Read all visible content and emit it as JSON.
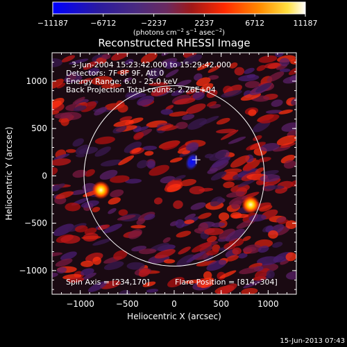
{
  "colorbar": {
    "ticks": [
      "−11187",
      "−6712",
      "−2237",
      "2237",
      "6712",
      "11187"
    ],
    "unit_main": "(photons cm",
    "unit_sup1": "−2",
    "unit_mid": " s",
    "unit_sup2": "−1",
    "unit_mid2": " asec",
    "unit_sup3": "−2",
    "unit_end": ")",
    "colors": [
      "#0000ff",
      "#3a1a8c",
      "#6b2a73",
      "#a02020",
      "#ff2a00",
      "#ff9a00",
      "#ffff60",
      "#ffffff"
    ]
  },
  "annotations": {
    "time_range": "3-Jun-2004 15:23:42.000 to 15:29:42.000",
    "detectors": "Detectors: 7F 8F 9F, Att 0",
    "energy": "Energy Range: 6.0 - 25.0 keV",
    "method": "Back Projection    Total counts: 2.26E+04",
    "spin_axis": "Spin Axis = [234,170]",
    "flare_position": "Flare Position = [814,-304]"
  },
  "footer": {
    "timestamp": "15-Jun-2013 07:43"
  },
  "chart_data": {
    "type": "heatmap",
    "title": "Reconstructed RHESSI Image",
    "xlabel": "Heliocentric X (arcsec)",
    "ylabel": "Heliocentric Y (arcsec)",
    "xlim": [
      -1300,
      1300
    ],
    "ylim": [
      -1250,
      1300
    ],
    "xticks": [
      -1000,
      -500,
      0,
      500,
      1000
    ],
    "yticks": [
      1000,
      500,
      0,
      -500,
      -1000
    ],
    "xtick_labels": [
      "−1000",
      "−500",
      "0",
      "500",
      "1000"
    ],
    "ytick_labels": [
      "1000",
      "500",
      "0",
      "−500",
      "−1000"
    ],
    "value_range": [
      -11187,
      11187
    ],
    "solar_limb": {
      "center": [
        0,
        0
      ],
      "radius": 960
    },
    "spin_axis": [
      234,
      170
    ],
    "bright_sources": [
      {
        "x": -780,
        "y": -150,
        "level": "max"
      },
      {
        "x": 814,
        "y": -304,
        "level": "max"
      }
    ],
    "dark_source": {
      "x": 190,
      "y": 150,
      "level": "min"
    }
  }
}
